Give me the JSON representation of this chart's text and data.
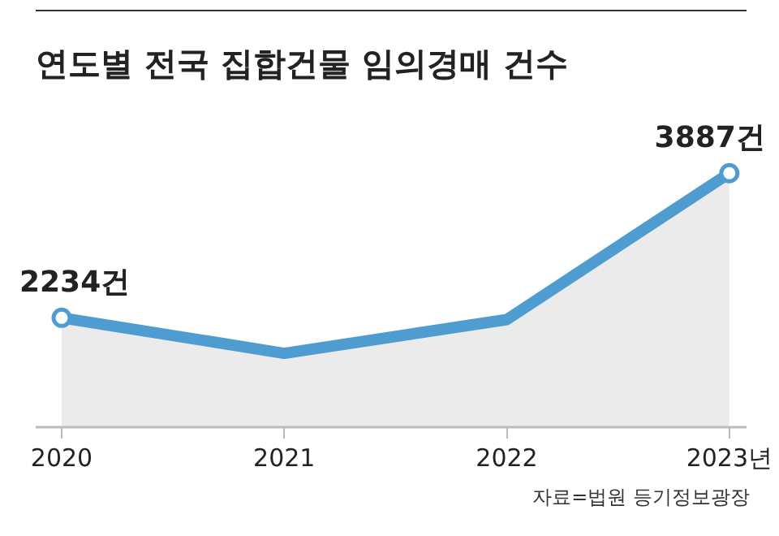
{
  "chart_data": {
    "type": "area",
    "title": "연도별 전국 집합건물 임의경매 건수",
    "categories": [
      "2020",
      "2021",
      "2022",
      "2023년"
    ],
    "series": [
      {
        "color": "#4f9dd0",
        "values": [
          2234,
          1828,
          2214,
          3887
        ],
        "value_labels": [
          "2234건",
          null,
          null,
          "3887건"
        ]
      }
    ],
    "marker": "circle",
    "relative": false,
    "annotations": [
      "자료=법원 등기정보광장"
    ]
  }
}
